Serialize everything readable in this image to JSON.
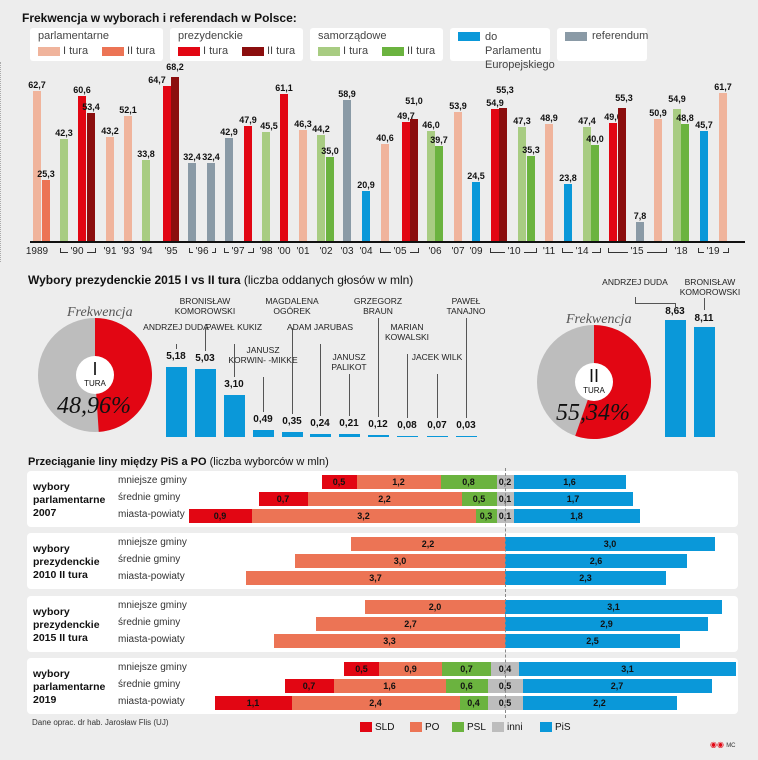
{
  "turnout": {
    "title": "Frekwencja w wyborach i referendach w Polsce:",
    "legend": {
      "parliamentary": {
        "label": "parlamentarne",
        "r1": "I tura",
        "r2": "II tura"
      },
      "presidential": {
        "label": "prezydenckie",
        "r1": "I tura",
        "r2": "II tura"
      },
      "local": {
        "label": "samorządowe",
        "r1": "I tura",
        "r2": "II tura"
      },
      "eu": "do Parlamentu Europejskiego",
      "referendum": "referendum"
    },
    "colors": {
      "parl1": "#f0b49c",
      "parl2": "#ec7455",
      "pres1": "#e20613",
      "pres2": "#8b0e0e",
      "loc1": "#a8cc82",
      "loc2": "#6bb33f",
      "eu": "#0a98d9",
      "ref": "#8a9aa6"
    }
  },
  "chart_data": [
    {
      "type": "bar",
      "title": "Frekwencja w wyborach i referendach w Polsce:",
      "bars": [
        {
          "v": 62.7,
          "k": "parl1",
          "label": "62,7"
        },
        {
          "v": 25.3,
          "k": "parl2",
          "label": "25,3"
        },
        {
          "v": 42.3,
          "k": "loc1",
          "label": "42,3"
        },
        {
          "v": 60.6,
          "k": "pres1",
          "label": "60,6"
        },
        {
          "v": 53.4,
          "k": "pres2",
          "label": "53,4"
        },
        {
          "v": 43.2,
          "k": "parl1",
          "label": "43,2"
        },
        {
          "v": 52.1,
          "k": "parl1",
          "label": "52,1"
        },
        {
          "v": 33.8,
          "k": "loc1",
          "label": "33,8"
        },
        {
          "v": 64.7,
          "k": "pres1",
          "label": "64,7"
        },
        {
          "v": 68.2,
          "k": "pres2",
          "label": "68,2"
        },
        {
          "v": 32.4,
          "k": "ref",
          "label": "32,4"
        },
        {
          "v": 32.4,
          "k": "ref",
          "label": "32,4"
        },
        {
          "v": 42.9,
          "k": "ref",
          "label": "42,9"
        },
        {
          "v": 47.9,
          "k": "pres1",
          "label": "47,9"
        },
        {
          "v": 45.5,
          "k": "loc1",
          "label": "45,5"
        },
        {
          "v": 61.1,
          "k": "pres1",
          "label": "61,1"
        },
        {
          "v": 46.3,
          "k": "parl1",
          "label": "46,3"
        },
        {
          "v": 44.2,
          "k": "loc1",
          "label": "44,2"
        },
        {
          "v": 35.0,
          "k": "loc2",
          "label": "35,0"
        },
        {
          "v": 58.9,
          "k": "ref",
          "label": "58,9"
        },
        {
          "v": 20.9,
          "k": "eu",
          "label": "20,9"
        },
        {
          "v": 40.6,
          "k": "parl1",
          "label": "40,6"
        },
        {
          "v": 49.7,
          "k": "pres1",
          "label": "49,7"
        },
        {
          "v": 51.0,
          "k": "pres2",
          "label": "51,0"
        },
        {
          "v": 46.0,
          "k": "loc1",
          "label": "46,0"
        },
        {
          "v": 39.7,
          "k": "loc2",
          "label": "39,7"
        },
        {
          "v": 53.9,
          "k": "parl1",
          "label": "53,9"
        },
        {
          "v": 24.5,
          "k": "eu",
          "label": "24,5"
        },
        {
          "v": 54.9,
          "k": "pres1",
          "label": "54,9"
        },
        {
          "v": 55.3,
          "k": "pres2",
          "label": "55,3"
        },
        {
          "v": 47.3,
          "k": "loc1",
          "label": "47,3"
        },
        {
          "v": 35.3,
          "k": "loc2",
          "label": "35,3"
        },
        {
          "v": 48.9,
          "k": "parl1",
          "label": "48,9"
        },
        {
          "v": 23.8,
          "k": "eu",
          "label": "23,8"
        },
        {
          "v": 47.4,
          "k": "loc1",
          "label": "47,4"
        },
        {
          "v": 40.0,
          "k": "loc2",
          "label": "40,0"
        },
        {
          "v": 49.0,
          "k": "pres1",
          "label": "49,0"
        },
        {
          "v": 55.3,
          "k": "pres2",
          "label": "55,3"
        },
        {
          "v": 7.8,
          "k": "ref",
          "label": "7,8"
        },
        {
          "v": 50.9,
          "k": "parl1",
          "label": "50,9"
        },
        {
          "v": 54.9,
          "k": "loc1",
          "label": "54,9"
        },
        {
          "v": 48.8,
          "k": "loc2",
          "label": "48,8"
        },
        {
          "v": 45.7,
          "k": "eu",
          "label": "45,7"
        },
        {
          "v": 61.7,
          "k": "parl1",
          "label": "61,7"
        }
      ],
      "years": [
        "1989",
        "'90",
        "'91",
        "'93",
        "'94",
        "'95",
        "'96",
        "'97",
        "'98",
        "'00",
        "'01",
        "'02",
        "'03",
        "'04",
        "'05",
        "'06",
        "'07",
        "'09",
        "'10",
        "'11",
        "'14",
        "'15",
        "'18",
        "'19"
      ]
    },
    {
      "type": "bar",
      "title": "Wybory prezydenckie 2015 I vs II tura",
      "subtitle": "(liczba oddanych głosów w mln)",
      "round1": {
        "label_top": "I",
        "label_bottom": "TURA",
        "turnout_pct": 48.96,
        "turnout_label": "48,96%",
        "frek_label": "Frekwencja",
        "candidates": [
          {
            "name": "ANDRZEJ DUDA",
            "v": 5.18,
            "label": "5,18"
          },
          {
            "name": "BRONISŁAW KOMOROWSKI",
            "v": 5.03,
            "label": "5,03"
          },
          {
            "name": "PAWEŁ KUKIZ",
            "v": 3.1,
            "label": "3,10"
          },
          {
            "name": "JANUSZ KORWIN- -MIKKE",
            "v": 0.49,
            "label": "0,49"
          },
          {
            "name": "MAGDALENA OGÓREK",
            "v": 0.35,
            "label": "0,35"
          },
          {
            "name": "ADAM JARUBAS",
            "v": 0.24,
            "label": "0,24"
          },
          {
            "name": "JANUSZ PALIKOT",
            "v": 0.21,
            "label": "0,21"
          },
          {
            "name": "GRZEGORZ BRAUN",
            "v": 0.12,
            "label": "0,12"
          },
          {
            "name": "MARIAN KOWALSKI",
            "v": 0.08,
            "label": "0,08"
          },
          {
            "name": "JACEK WILK",
            "v": 0.07,
            "label": "0,07"
          },
          {
            "name": "PAWEŁ TANAJNO",
            "v": 0.03,
            "label": "0,03"
          }
        ]
      },
      "round2": {
        "label_top": "II",
        "label_bottom": "TURA",
        "turnout_pct": 55.34,
        "turnout_label": "55,34%",
        "frek_label": "Frekwencja",
        "candidates": [
          {
            "name": "ANDRZEJ DUDA",
            "v": 8.63,
            "label": "8,63"
          },
          {
            "name": "BRONISŁAW KOMOROWSKI",
            "v": 8.11,
            "label": "8,11"
          }
        ]
      }
    },
    {
      "type": "bar",
      "title": "Przeciąganie liny między PiS a PO",
      "subtitle": "(liczba wyborców w mln)",
      "parties": [
        {
          "key": "SLD",
          "color": "#e20613"
        },
        {
          "key": "PO",
          "color": "#ec7455"
        },
        {
          "key": "PSL",
          "color": "#6bb33f"
        },
        {
          "key": "inni",
          "color": "#bdbdbd"
        },
        {
          "key": "PiS",
          "color": "#0a98d9"
        }
      ],
      "groups": [
        {
          "title": "wybory parlamentarne 2007",
          "rows": [
            {
              "label": "mniejsze gminy",
              "SLD": "0,5",
              "PO": "1,2",
              "PSL": "0,8",
              "inni": "0,2",
              "PiS": "1,6"
            },
            {
              "label": "średnie gminy",
              "SLD": "0,7",
              "PO": "2,2",
              "PSL": "0,5",
              "inni": "0,1",
              "PiS": "1,7"
            },
            {
              "label": "miasta-powiaty",
              "SLD": "0,9",
              "PO": "3,2",
              "PSL": "0,3",
              "inni": "0,1",
              "PiS": "1,8"
            }
          ]
        },
        {
          "title": "wybory prezydenckie 2010 II tura",
          "rows": [
            {
              "label": "mniejsze gminy",
              "PO": "2,2",
              "PiS": "3,0"
            },
            {
              "label": "średnie gminy",
              "PO": "3,0",
              "PiS": "2,6"
            },
            {
              "label": "miasta-powiaty",
              "PO": "3,7",
              "PiS": "2,3"
            }
          ]
        },
        {
          "title": "wybory prezydenckie 2015 II tura",
          "rows": [
            {
              "label": "mniejsze gminy",
              "PO": "2,0",
              "PiS": "3,1"
            },
            {
              "label": "średnie gminy",
              "PO": "2,7",
              "PiS": "2,9"
            },
            {
              "label": "miasta-powiaty",
              "PO": "3,3",
              "PiS": "2,5"
            }
          ]
        },
        {
          "title": "wybory parlamentarne 2019",
          "rows": [
            {
              "label": "mniejsze gminy",
              "SLD": "0,5",
              "PO": "0,9",
              "PSL": "0,7",
              "inni": "0,4",
              "PiS": "3,1"
            },
            {
              "label": "średnie gminy",
              "SLD": "0,7",
              "PO": "1,6",
              "PSL": "0,6",
              "inni": "0,5",
              "PiS": "2,7"
            },
            {
              "label": "miasta-powiaty",
              "SLD": "1,1",
              "PO": "2,4",
              "PSL": "0,4",
              "inni": "0,5",
              "PiS": "2,2"
            }
          ]
        }
      ]
    }
  ],
  "footer": {
    "source": "Dane oprac. dr hab. Jarosław Flis (UJ)",
    "credit": "MC"
  }
}
